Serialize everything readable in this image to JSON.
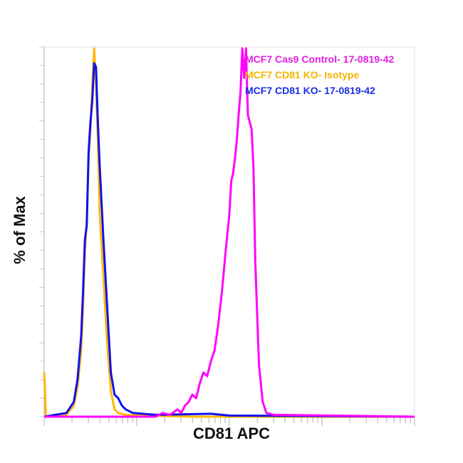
{
  "chart_data": {
    "type": "line",
    "title": "",
    "xlabel": "CD81 APC",
    "ylabel": "% of Max",
    "x_scale": "log",
    "ylim": [
      0,
      100
    ],
    "grid": false,
    "legend_position": "top-right",
    "x_units": "plot fraction (0-1) across log-scaled axis",
    "series": [
      {
        "name": "MCF7 Cas9 Control- 17-0819-42",
        "color": "#ff00ff",
        "points": [
          [
            0.0,
            0
          ],
          [
            0.3,
            0
          ],
          [
            0.32,
            1
          ],
          [
            0.34,
            0.5
          ],
          [
            0.36,
            2
          ],
          [
            0.37,
            1
          ],
          [
            0.38,
            3
          ],
          [
            0.39,
            4
          ],
          [
            0.4,
            6
          ],
          [
            0.41,
            5
          ],
          [
            0.42,
            9
          ],
          [
            0.43,
            12
          ],
          [
            0.44,
            11
          ],
          [
            0.45,
            15
          ],
          [
            0.46,
            18
          ],
          [
            0.47,
            25
          ],
          [
            0.48,
            34
          ],
          [
            0.49,
            45
          ],
          [
            0.5,
            55
          ],
          [
            0.505,
            64
          ],
          [
            0.51,
            66
          ],
          [
            0.515,
            70
          ],
          [
            0.52,
            75
          ],
          [
            0.525,
            82
          ],
          [
            0.53,
            88
          ],
          [
            0.535,
            100
          ],
          [
            0.54,
            92
          ],
          [
            0.545,
            100
          ],
          [
            0.55,
            82
          ],
          [
            0.56,
            78
          ],
          [
            0.565,
            68
          ],
          [
            0.57,
            42
          ],
          [
            0.575,
            28
          ],
          [
            0.58,
            14
          ],
          [
            0.59,
            4
          ],
          [
            0.6,
            1
          ],
          [
            0.62,
            0.5
          ],
          [
            1.0,
            0
          ]
        ]
      },
      {
        "name": "MCF7 CD81 KO- Isotype",
        "color": "#ffb800",
        "points": [
          [
            0.0,
            12
          ],
          [
            0.005,
            0
          ],
          [
            0.03,
            0.5
          ],
          [
            0.06,
            0.5
          ],
          [
            0.08,
            3
          ],
          [
            0.09,
            8
          ],
          [
            0.1,
            18
          ],
          [
            0.105,
            30
          ],
          [
            0.11,
            45
          ],
          [
            0.115,
            53
          ],
          [
            0.12,
            70
          ],
          [
            0.125,
            78
          ],
          [
            0.13,
            90
          ],
          [
            0.135,
            100
          ],
          [
            0.14,
            90
          ],
          [
            0.145,
            75
          ],
          [
            0.15,
            55
          ],
          [
            0.16,
            38
          ],
          [
            0.17,
            20
          ],
          [
            0.18,
            7
          ],
          [
            0.19,
            2
          ],
          [
            0.2,
            1
          ],
          [
            0.22,
            0.5
          ],
          [
            0.4,
            0
          ],
          [
            0.6,
            0
          ],
          [
            1.0,
            0
          ]
        ]
      },
      {
        "name": "MCF7 CD81 KO- 17-0819-42",
        "color": "#1010ee",
        "points": [
          [
            0.0,
            0
          ],
          [
            0.03,
            0.5
          ],
          [
            0.06,
            1
          ],
          [
            0.08,
            4
          ],
          [
            0.09,
            10
          ],
          [
            0.1,
            22
          ],
          [
            0.105,
            34
          ],
          [
            0.11,
            48
          ],
          [
            0.115,
            52
          ],
          [
            0.12,
            72
          ],
          [
            0.125,
            80
          ],
          [
            0.13,
            86
          ],
          [
            0.135,
            96
          ],
          [
            0.14,
            95
          ],
          [
            0.145,
            80
          ],
          [
            0.15,
            68
          ],
          [
            0.16,
            48
          ],
          [
            0.17,
            30
          ],
          [
            0.18,
            12
          ],
          [
            0.19,
            6
          ],
          [
            0.2,
            5
          ],
          [
            0.21,
            3
          ],
          [
            0.22,
            2
          ],
          [
            0.24,
            1
          ],
          [
            0.3,
            0.5
          ],
          [
            0.45,
            0.8
          ],
          [
            0.5,
            0.3
          ],
          [
            1.0,
            0
          ]
        ]
      }
    ]
  },
  "legend": [
    {
      "label": "MCF7 Cas9 Control- 17-0819-42",
      "color": "#e020e0"
    },
    {
      "label": "MCF7 CD81 KO- Isotype",
      "color": "#f5b400"
    },
    {
      "label": "MCF7 CD81 KO- 17-0819-42",
      "color": "#1a2ee0"
    }
  ],
  "axes": {
    "xlabel": "CD81 APC",
    "ylabel": "% of Max"
  }
}
